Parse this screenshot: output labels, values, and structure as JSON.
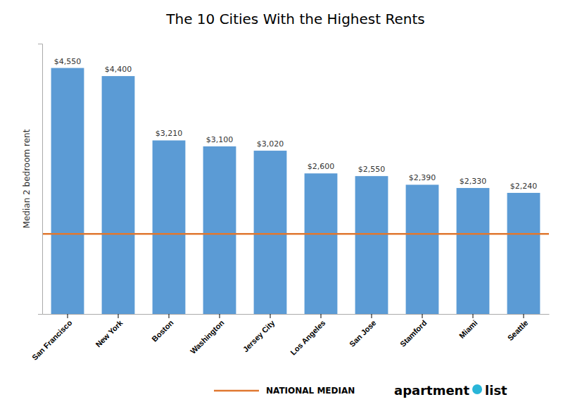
{
  "chart_data": {
    "type": "bar",
    "title": "The 10 Cities With the Highest Rents",
    "ylabel": "Median 2 bedroom rent",
    "categories": [
      "San Francisco",
      "New York",
      "Boston",
      "Washington",
      "Jersey City",
      "Los Angeles",
      "San Jose",
      "Stamford",
      "Miami",
      "Seattle"
    ],
    "values": [
      4550,
      4400,
      3210,
      3100,
      3020,
      2600,
      2550,
      2390,
      2330,
      2240
    ],
    "value_labels": [
      "$4,550",
      "$4,400",
      "$3,210",
      "$3,100",
      "$3,020",
      "$2,600",
      "$2,550",
      "$2,390",
      "$2,330",
      "$2,240"
    ],
    "data_labels": true,
    "color": "#5b9bd5",
    "ylim": [
      0,
      5000
    ],
    "yticks": [],
    "tick_labels": "x",
    "grid": false,
    "national_median": {
      "value": 1480,
      "label": "NATIONAL MEDIAN",
      "color": "#e07830"
    },
    "logo": {
      "texts": [
        "apartment",
        "list"
      ],
      "color": "#29b5d8"
    }
  }
}
